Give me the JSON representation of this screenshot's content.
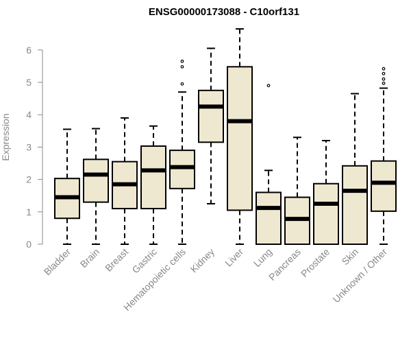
{
  "chart_data": {
    "type": "box",
    "title": "ENSG00000173088 - C10orf131",
    "ylabel": "Expression",
    "xlabel": "",
    "ylim": [
      0,
      6.7
    ],
    "yticks": [
      0,
      1,
      2,
      3,
      4,
      5,
      6
    ],
    "grid": false,
    "box_fill": "#efe8d0",
    "box_stroke": "#000000",
    "categories": [
      "Bladder",
      "Brain",
      "Breast",
      "Gastric",
      "Hematopoietic cells",
      "Kidney",
      "Liver",
      "Lung",
      "Pancreas",
      "Prostate",
      "Skin",
      "Unknown / Other"
    ],
    "boxes": [
      {
        "category": "Bladder",
        "whisker_low": 0.0,
        "q1": 0.8,
        "median": 1.45,
        "q3": 2.03,
        "whisker_high": 3.55,
        "outliers": []
      },
      {
        "category": "Brain",
        "whisker_low": 0.0,
        "q1": 1.3,
        "median": 2.15,
        "q3": 2.62,
        "whisker_high": 3.57,
        "outliers": []
      },
      {
        "category": "Breast",
        "whisker_low": 0.0,
        "q1": 1.1,
        "median": 1.85,
        "q3": 2.55,
        "whisker_high": 3.9,
        "outliers": []
      },
      {
        "category": "Gastric",
        "whisker_low": 0.0,
        "q1": 1.1,
        "median": 2.28,
        "q3": 3.03,
        "whisker_high": 3.65,
        "outliers": []
      },
      {
        "category": "Hematopoietic cells",
        "whisker_low": 0.0,
        "q1": 1.72,
        "median": 2.38,
        "q3": 2.9,
        "whisker_high": 4.7,
        "outliers": [
          4.95,
          5.48,
          5.65
        ]
      },
      {
        "category": "Kidney",
        "whisker_low": 1.25,
        "q1": 3.15,
        "median": 4.25,
        "q3": 4.75,
        "whisker_high": 6.05,
        "outliers": []
      },
      {
        "category": "Liver",
        "whisker_low": 0.0,
        "q1": 1.05,
        "median": 3.8,
        "q3": 5.48,
        "whisker_high": 6.65,
        "outliers": []
      },
      {
        "category": "Lung",
        "whisker_low": 0.0,
        "q1": 0.0,
        "median": 1.12,
        "q3": 1.6,
        "whisker_high": 2.28,
        "outliers": [
          4.9
        ]
      },
      {
        "category": "Pancreas",
        "whisker_low": 0.0,
        "q1": 0.0,
        "median": 0.78,
        "q3": 1.45,
        "whisker_high": 3.3,
        "outliers": []
      },
      {
        "category": "Prostate",
        "whisker_low": 0.0,
        "q1": 0.0,
        "median": 1.25,
        "q3": 1.87,
        "whisker_high": 3.2,
        "outliers": []
      },
      {
        "category": "Skin",
        "whisker_low": 0.0,
        "q1": 0.0,
        "median": 1.65,
        "q3": 2.42,
        "whisker_high": 4.65,
        "outliers": []
      },
      {
        "category": "Unknown / Other",
        "whisker_low": 0.0,
        "q1": 1.02,
        "median": 1.9,
        "q3": 2.57,
        "whisker_high": 4.82,
        "outliers": [
          4.97,
          5.1,
          5.27,
          5.42
        ]
      }
    ]
  }
}
